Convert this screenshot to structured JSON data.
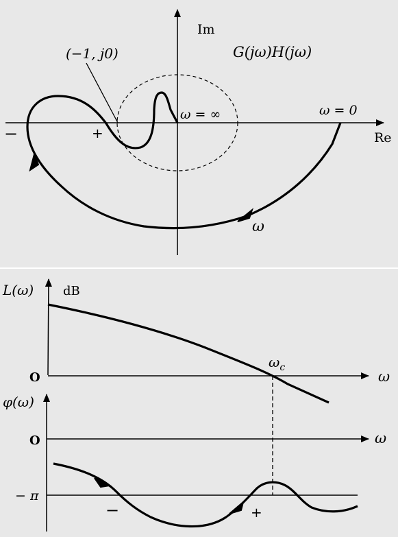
{
  "nyquist": {
    "title": "G(jω)H(jω)",
    "axis_im": "Im",
    "axis_re": "Re",
    "critical_point": "(−1, j0)",
    "omega_infinity": "ω = ∞",
    "omega_zero": "ω = 0",
    "omega": "ω",
    "minus": "−",
    "plus": "+"
  },
  "bode": {
    "magnitude_label": "L(ω)",
    "unit_db": "dB",
    "origin_magnitude": "O",
    "omega_axis_magnitude": "ω",
    "crossover": "ω",
    "crossover_sub": "c",
    "phase_label": "φ(ω)",
    "origin_phase": "O",
    "omega_axis_phase": "ω",
    "minus_pi": "− π",
    "minus": "−",
    "plus": "+"
  },
  "colors": {
    "panel_background": "#e8e8e8",
    "stroke": "#000000"
  }
}
